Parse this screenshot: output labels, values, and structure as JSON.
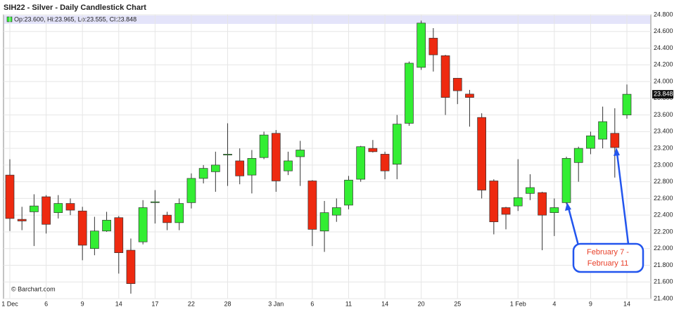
{
  "chart_data": {
    "type": "candlestick",
    "title": "SIH22 - Silver - Daily Candlestick Chart",
    "info": "Op:23.600, Hi:23.965, Lo:23.555, Cl:23.848",
    "credit": "© Barchart.com",
    "annotation": [
      "February 7 -",
      "February 11"
    ],
    "categories": [
      "1 Dec",
      null,
      null,
      "6",
      null,
      null,
      "9",
      null,
      null,
      "14",
      null,
      null,
      "17",
      null,
      null,
      "22",
      null,
      null,
      "28",
      null,
      null,
      null,
      "3 Jan",
      null,
      null,
      "6",
      null,
      null,
      "11",
      null,
      null,
      "14",
      null,
      null,
      "20",
      null,
      null,
      "25",
      null,
      null,
      null,
      null,
      "1 Feb",
      null,
      null,
      "4",
      null,
      null,
      "9",
      null,
      null,
      "14"
    ],
    "open": [
      22.88,
      22.35,
      22.44,
      22.62,
      22.43,
      22.54,
      22.45,
      22.0,
      22.21,
      22.37,
      21.98,
      22.08,
      22.55,
      22.4,
      22.31,
      22.55,
      22.84,
      22.92,
      23.12,
      23.05,
      22.88,
      23.09,
      23.38,
      22.93,
      23.1,
      22.81,
      22.21,
      22.4,
      22.52,
      22.83,
      23.2,
      23.13,
      23.01,
      23.5,
      24.17,
      24.52,
      24.31,
      24.04,
      23.85,
      23.57,
      22.81,
      22.49,
      22.51,
      22.66,
      22.67,
      22.43,
      22.55,
      23.03,
      23.2,
      23.31,
      23.38,
      23.6
    ],
    "high": [
      23.07,
      22.5,
      22.65,
      22.64,
      22.64,
      22.6,
      22.5,
      22.38,
      22.44,
      22.39,
      22.12,
      22.58,
      22.7,
      22.44,
      22.6,
      22.9,
      23.0,
      23.16,
      23.5,
      23.2,
      23.18,
      23.4,
      23.42,
      23.16,
      23.29,
      22.82,
      22.57,
      22.6,
      22.87,
      23.23,
      23.3,
      23.16,
      23.6,
      24.24,
      24.73,
      24.64,
      24.32,
      24.04,
      23.9,
      23.62,
      22.83,
      22.5,
      23.07,
      22.89,
      22.68,
      22.6,
      23.1,
      23.22,
      23.4,
      23.7,
      23.68,
      23.965
    ],
    "low": [
      22.21,
      22.22,
      22.03,
      22.18,
      22.36,
      22.4,
      21.86,
      21.92,
      22.2,
      21.7,
      21.46,
      22.05,
      22.3,
      22.22,
      22.22,
      22.48,
      22.78,
      22.68,
      22.75,
      22.77,
      22.66,
      23.07,
      22.68,
      22.88,
      22.75,
      22.03,
      21.96,
      22.32,
      22.47,
      22.8,
      23.15,
      22.83,
      22.83,
      23.47,
      24.14,
      24.12,
      23.6,
      23.73,
      23.46,
      22.6,
      22.17,
      22.23,
      22.45,
      22.58,
      21.98,
      22.15,
      22.53,
      22.8,
      23.13,
      23.2,
      22.85,
      23.555
    ],
    "close": [
      22.36,
      22.33,
      22.51,
      22.29,
      22.54,
      22.46,
      22.04,
      22.21,
      22.34,
      21.95,
      21.58,
      22.49,
      22.56,
      22.31,
      22.54,
      22.84,
      22.96,
      23.0,
      23.13,
      22.87,
      23.08,
      23.36,
      22.81,
      23.05,
      23.18,
      22.23,
      22.43,
      22.49,
      22.82,
      23.22,
      23.16,
      22.93,
      23.49,
      24.22,
      24.7,
      24.32,
      23.81,
      23.89,
      23.81,
      22.7,
      22.32,
      22.41,
      22.61,
      22.73,
      22.4,
      22.49,
      23.08,
      23.2,
      23.35,
      23.52,
      23.21,
      23.848
    ],
    "up_color": "#33ee33",
    "down_color": "#ee2a10",
    "grid": true,
    "ylim": [
      21.4,
      24.8
    ],
    "yticks": [
      {
        "value": 21.4,
        "label": "21.400"
      },
      {
        "value": 21.6,
        "label": "21.600"
      },
      {
        "value": 21.8,
        "label": "21.800"
      },
      {
        "value": 22.0,
        "label": "22.000"
      },
      {
        "value": 22.2,
        "label": "22.200"
      },
      {
        "value": 22.4,
        "label": "22.400"
      },
      {
        "value": 22.6,
        "label": "22.600"
      },
      {
        "value": 22.8,
        "label": "22.800"
      },
      {
        "value": 23.0,
        "label": "23.000"
      },
      {
        "value": 23.2,
        "label": "23.200"
      },
      {
        "value": 23.4,
        "label": "23.400"
      },
      {
        "value": 23.6,
        "label": "23.600"
      },
      {
        "value": 23.8,
        "label": "23.800"
      },
      {
        "value": 24.0,
        "label": "24.000"
      },
      {
        "value": 24.2,
        "label": "24.200"
      },
      {
        "value": 24.4,
        "label": "24.400"
      },
      {
        "value": 24.6,
        "label": "24.600"
      },
      {
        "value": 24.8,
        "label": "24.800"
      }
    ]
  }
}
